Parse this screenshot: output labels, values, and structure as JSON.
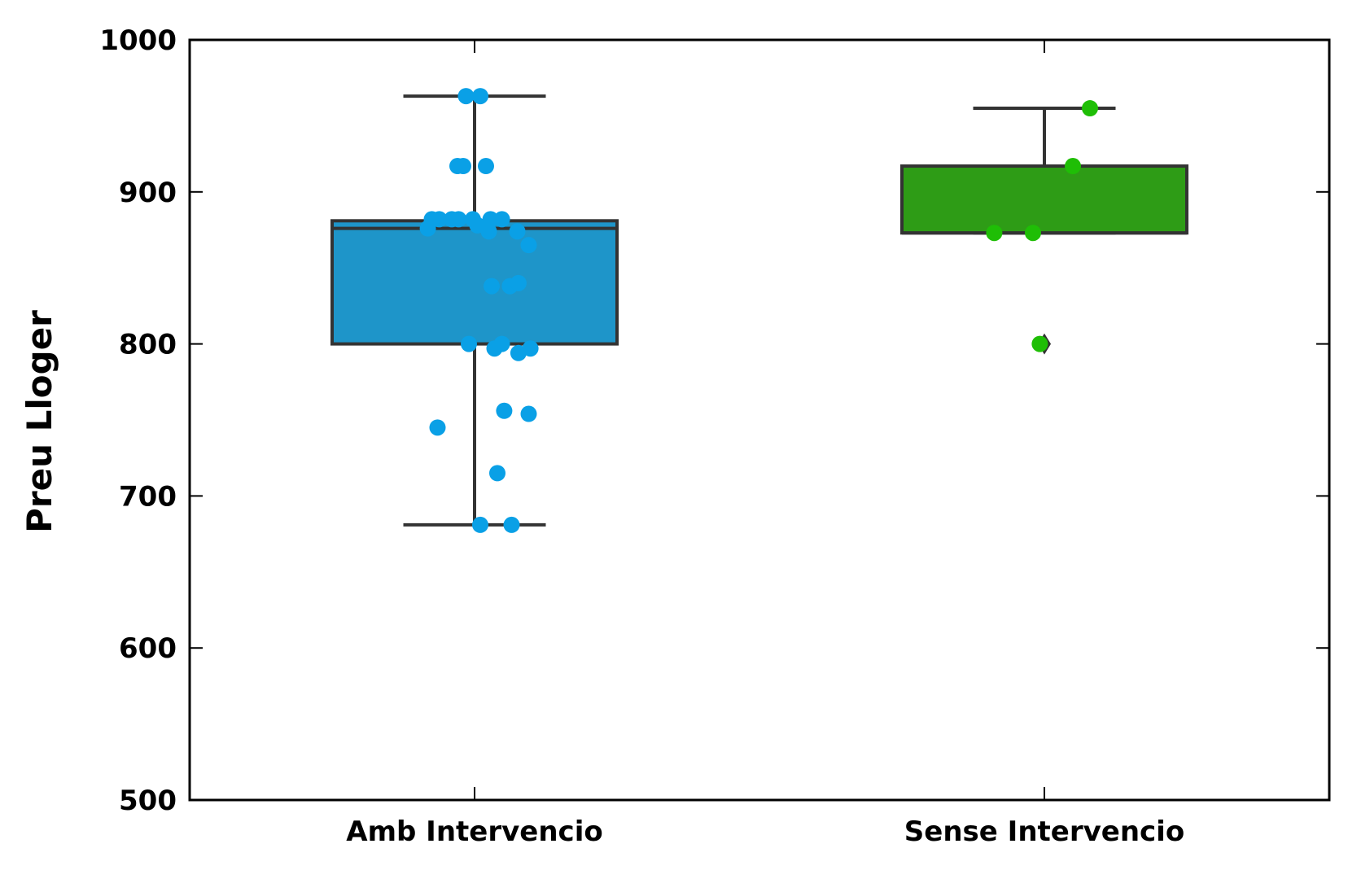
{
  "chart_data": {
    "type": "boxplot",
    "ylabel": "Preu Lloger",
    "xlabel": "",
    "title": "",
    "ylim": [
      500,
      1000
    ],
    "yticks": [
      500,
      600,
      700,
      800,
      900,
      1000
    ],
    "grid": false,
    "colors": {
      "box_stroke": "#333333",
      "axis": "#000000"
    },
    "categories": [
      {
        "name": "Amb Intervencio",
        "box_color": "#1e95c9",
        "point_color": "#0aa0e6",
        "whisker_low": 681,
        "q1": 800,
        "median": 876,
        "q3": 881,
        "whisker_high": 963,
        "outliers": [],
        "points": [
          {
            "x": -0.015,
            "y": 963
          },
          {
            "x": 0.01,
            "y": 963
          },
          {
            "x": -0.03,
            "y": 917
          },
          {
            "x": -0.02,
            "y": 917
          },
          {
            "x": 0.02,
            "y": 917
          },
          {
            "x": -0.075,
            "y": 882
          },
          {
            "x": -0.062,
            "y": 882
          },
          {
            "x": -0.04,
            "y": 882
          },
          {
            "x": -0.028,
            "y": 882
          },
          {
            "x": -0.003,
            "y": 882
          },
          {
            "x": 0.028,
            "y": 882
          },
          {
            "x": 0.048,
            "y": 882
          },
          {
            "x": -0.082,
            "y": 876
          },
          {
            "x": 0.005,
            "y": 878
          },
          {
            "x": 0.025,
            "y": 874
          },
          {
            "x": 0.075,
            "y": 874
          },
          {
            "x": 0.095,
            "y": 865
          },
          {
            "x": 0.03,
            "y": 838
          },
          {
            "x": 0.062,
            "y": 838
          },
          {
            "x": 0.077,
            "y": 840
          },
          {
            "x": -0.01,
            "y": 800
          },
          {
            "x": 0.035,
            "y": 797
          },
          {
            "x": 0.048,
            "y": 800
          },
          {
            "x": 0.077,
            "y": 794
          },
          {
            "x": 0.098,
            "y": 797
          },
          {
            "x": -0.065,
            "y": 745
          },
          {
            "x": 0.052,
            "y": 756
          },
          {
            "x": 0.095,
            "y": 754
          },
          {
            "x": 0.04,
            "y": 715
          },
          {
            "x": 0.01,
            "y": 681
          },
          {
            "x": 0.065,
            "y": 681
          }
        ]
      },
      {
        "name": "Sense Intervencio",
        "box_color": "#2e9c16",
        "point_color": "#1fbe06",
        "whisker_low": 873,
        "q1": 873,
        "median": 873,
        "q3": 917,
        "whisker_high": 955,
        "outliers": [
          800
        ],
        "points": [
          {
            "x": 0.08,
            "y": 955
          },
          {
            "x": 0.05,
            "y": 917
          },
          {
            "x": -0.088,
            "y": 873
          },
          {
            "x": -0.02,
            "y": 873
          },
          {
            "x": -0.008,
            "y": 800
          }
        ]
      }
    ]
  }
}
